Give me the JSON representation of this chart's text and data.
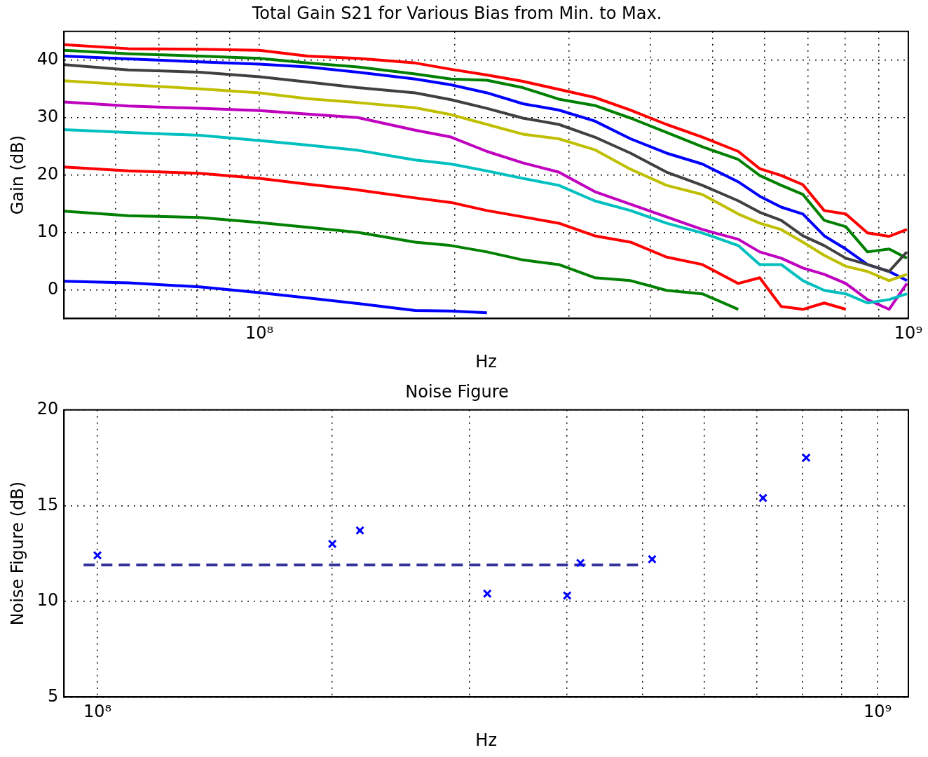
{
  "chart_data": [
    {
      "type": "line",
      "title": "Total Gain S21 for Various Bias from Min. to Max.",
      "xlabel": "Hz",
      "ylabel": "Gain (dB)",
      "log": "x",
      "grid": true,
      "x": [
        50000000,
        62800000,
        80900000,
        100000000,
        118600000,
        141800000,
        173800000,
        197400000,
        224200000,
        254700000,
        289300000,
        328600000,
        373200000,
        424000000,
        481500000,
        547000000,
        590200000,
        637000000,
        688000000,
        742000000,
        801000000,
        865000000,
        934000000,
        995000000
      ],
      "xlim": [
        50000000,
        1000000000
      ],
      "ylim": [
        -5,
        45
      ],
      "xticks": [
        {
          "value": 60000000,
          "label": null
        },
        {
          "value": 70000000,
          "label": null
        },
        {
          "value": 80000000,
          "label": null
        },
        {
          "value": 90000000,
          "label": null
        },
        {
          "value": 100000000,
          "label": "10⁸"
        },
        {
          "value": 200000000,
          "label": null
        },
        {
          "value": 300000000,
          "label": null
        },
        {
          "value": 400000000,
          "label": null
        },
        {
          "value": 500000000,
          "label": null
        },
        {
          "value": 600000000,
          "label": null
        },
        {
          "value": 700000000,
          "label": null
        },
        {
          "value": 800000000,
          "label": null
        },
        {
          "value": 900000000,
          "label": null
        },
        {
          "value": 1000000000,
          "label": "10⁹"
        }
      ],
      "yticks": [
        0,
        10,
        20,
        30,
        40
      ],
      "series": [
        {
          "color": "#0000ff",
          "values": [
            1.5,
            1.2,
            0.5,
            -0.5,
            -1.4,
            -2.4,
            -3.6,
            -3.7,
            -4.0,
            null,
            null,
            null,
            null,
            null,
            null,
            null,
            null,
            null,
            null,
            null,
            null,
            null,
            null,
            null
          ]
        },
        {
          "color": "#008000",
          "values": [
            13.7,
            12.9,
            12.6,
            11.7,
            10.9,
            10.0,
            8.3,
            7.7,
            6.6,
            5.2,
            4.4,
            2.1,
            1.6,
            -0.1,
            -0.7,
            -3.4,
            null,
            null,
            null,
            null,
            null,
            null,
            null,
            null
          ]
        },
        {
          "color": "#ff0000",
          "values": [
            21.4,
            20.7,
            20.3,
            19.4,
            18.4,
            17.4,
            16.0,
            15.2,
            13.8,
            12.7,
            11.6,
            9.4,
            8.3,
            5.7,
            4.4,
            1.1,
            2.1,
            -2.9,
            -3.4,
            -2.3,
            -3.4,
            null,
            null,
            null
          ]
        },
        {
          "color": "#00bfbf",
          "values": [
            27.9,
            27.4,
            26.9,
            26.0,
            25.2,
            24.3,
            22.6,
            21.9,
            20.7,
            19.4,
            18.2,
            15.5,
            13.8,
            11.6,
            9.9,
            7.7,
            4.4,
            4.4,
            1.6,
            -0.1,
            -0.7,
            -2.3,
            -1.7,
            -0.7
          ]
        },
        {
          "color": "#bf00bf",
          "values": [
            32.7,
            32.0,
            31.6,
            31.2,
            30.6,
            30.0,
            27.8,
            26.6,
            24.1,
            22.1,
            20.5,
            17.1,
            14.9,
            12.7,
            10.5,
            8.8,
            6.6,
            5.5,
            3.8,
            2.7,
            1.1,
            -1.7,
            -3.4,
            1.1
          ]
        },
        {
          "color": "#bfbf00",
          "values": [
            36.4,
            35.7,
            35.0,
            34.3,
            33.3,
            32.6,
            31.7,
            30.5,
            28.8,
            27.1,
            26.3,
            24.4,
            21.0,
            18.2,
            16.6,
            13.2,
            11.6,
            10.5,
            8.3,
            6.0,
            4.1,
            3.2,
            1.6,
            2.7
          ]
        },
        {
          "color": "#404040",
          "values": [
            39.2,
            38.3,
            37.9,
            37.1,
            36.2,
            35.2,
            34.3,
            33.1,
            31.6,
            29.9,
            28.8,
            26.6,
            23.8,
            20.5,
            18.2,
            15.5,
            13.5,
            12.1,
            9.4,
            7.7,
            5.5,
            4.4,
            3.2,
            6.6
          ]
        },
        {
          "color": "#0000ff",
          "values": [
            40.7,
            40.2,
            39.7,
            39.3,
            38.8,
            37.9,
            36.7,
            35.7,
            34.3,
            32.4,
            31.3,
            29.4,
            26.3,
            23.8,
            21.9,
            18.8,
            16.3,
            14.4,
            13.2,
            9.4,
            7.1,
            4.4,
            3.2,
            1.6
          ]
        },
        {
          "color": "#008000",
          "values": [
            41.7,
            41.1,
            40.7,
            40.3,
            39.5,
            38.8,
            37.6,
            36.7,
            36.5,
            35.2,
            33.2,
            32.1,
            29.9,
            27.4,
            24.9,
            22.7,
            19.9,
            18.2,
            16.6,
            12.1,
            11.0,
            6.6,
            7.1,
            5.5
          ]
        },
        {
          "color": "#ff0000",
          "values": [
            42.7,
            42.0,
            41.9,
            41.7,
            40.7,
            40.3,
            39.5,
            38.4,
            37.4,
            36.3,
            34.9,
            33.5,
            31.3,
            28.8,
            26.6,
            24.1,
            21.1,
            19.9,
            18.3,
            13.8,
            13.2,
            9.9,
            9.3,
            10.5
          ]
        }
      ]
    },
    {
      "type": "scatter",
      "title": "Noise Figure",
      "xlabel": "Hz",
      "ylabel": "Noise Figure (dB)",
      "log": "x",
      "grid": true,
      "xlim": [
        90600000,
        1095000000
      ],
      "ylim": [
        5,
        20
      ],
      "xticks": [
        {
          "value": 100000000,
          "label": "10⁸"
        },
        {
          "value": 200000000,
          "label": null
        },
        {
          "value": 300000000,
          "label": null
        },
        {
          "value": 400000000,
          "label": null
        },
        {
          "value": 500000000,
          "label": null
        },
        {
          "value": 600000000,
          "label": null
        },
        {
          "value": 700000000,
          "label": null
        },
        {
          "value": 800000000,
          "label": null
        },
        {
          "value": 900000000,
          "label": null
        },
        {
          "value": 1000000000,
          "label": "10⁹"
        }
      ],
      "yticks": [
        5,
        10,
        15,
        20
      ],
      "series": [
        {
          "type": "scatter",
          "color": "#0000ff",
          "marker": "cross",
          "x": [
            100000000,
            200000000,
            217000000,
            316000000,
            400000000,
            416000000,
            514000000,
            713000000,
            810000000
          ],
          "values": [
            12.4,
            13.0,
            13.7,
            10.4,
            10.3,
            12.0,
            12.2,
            15.4,
            17.5
          ]
        },
        {
          "type": "line",
          "color": "#333399",
          "line_style": "dashed",
          "x": [
            96000000,
            495000000
          ],
          "values": [
            11.9,
            11.9
          ]
        }
      ]
    }
  ]
}
